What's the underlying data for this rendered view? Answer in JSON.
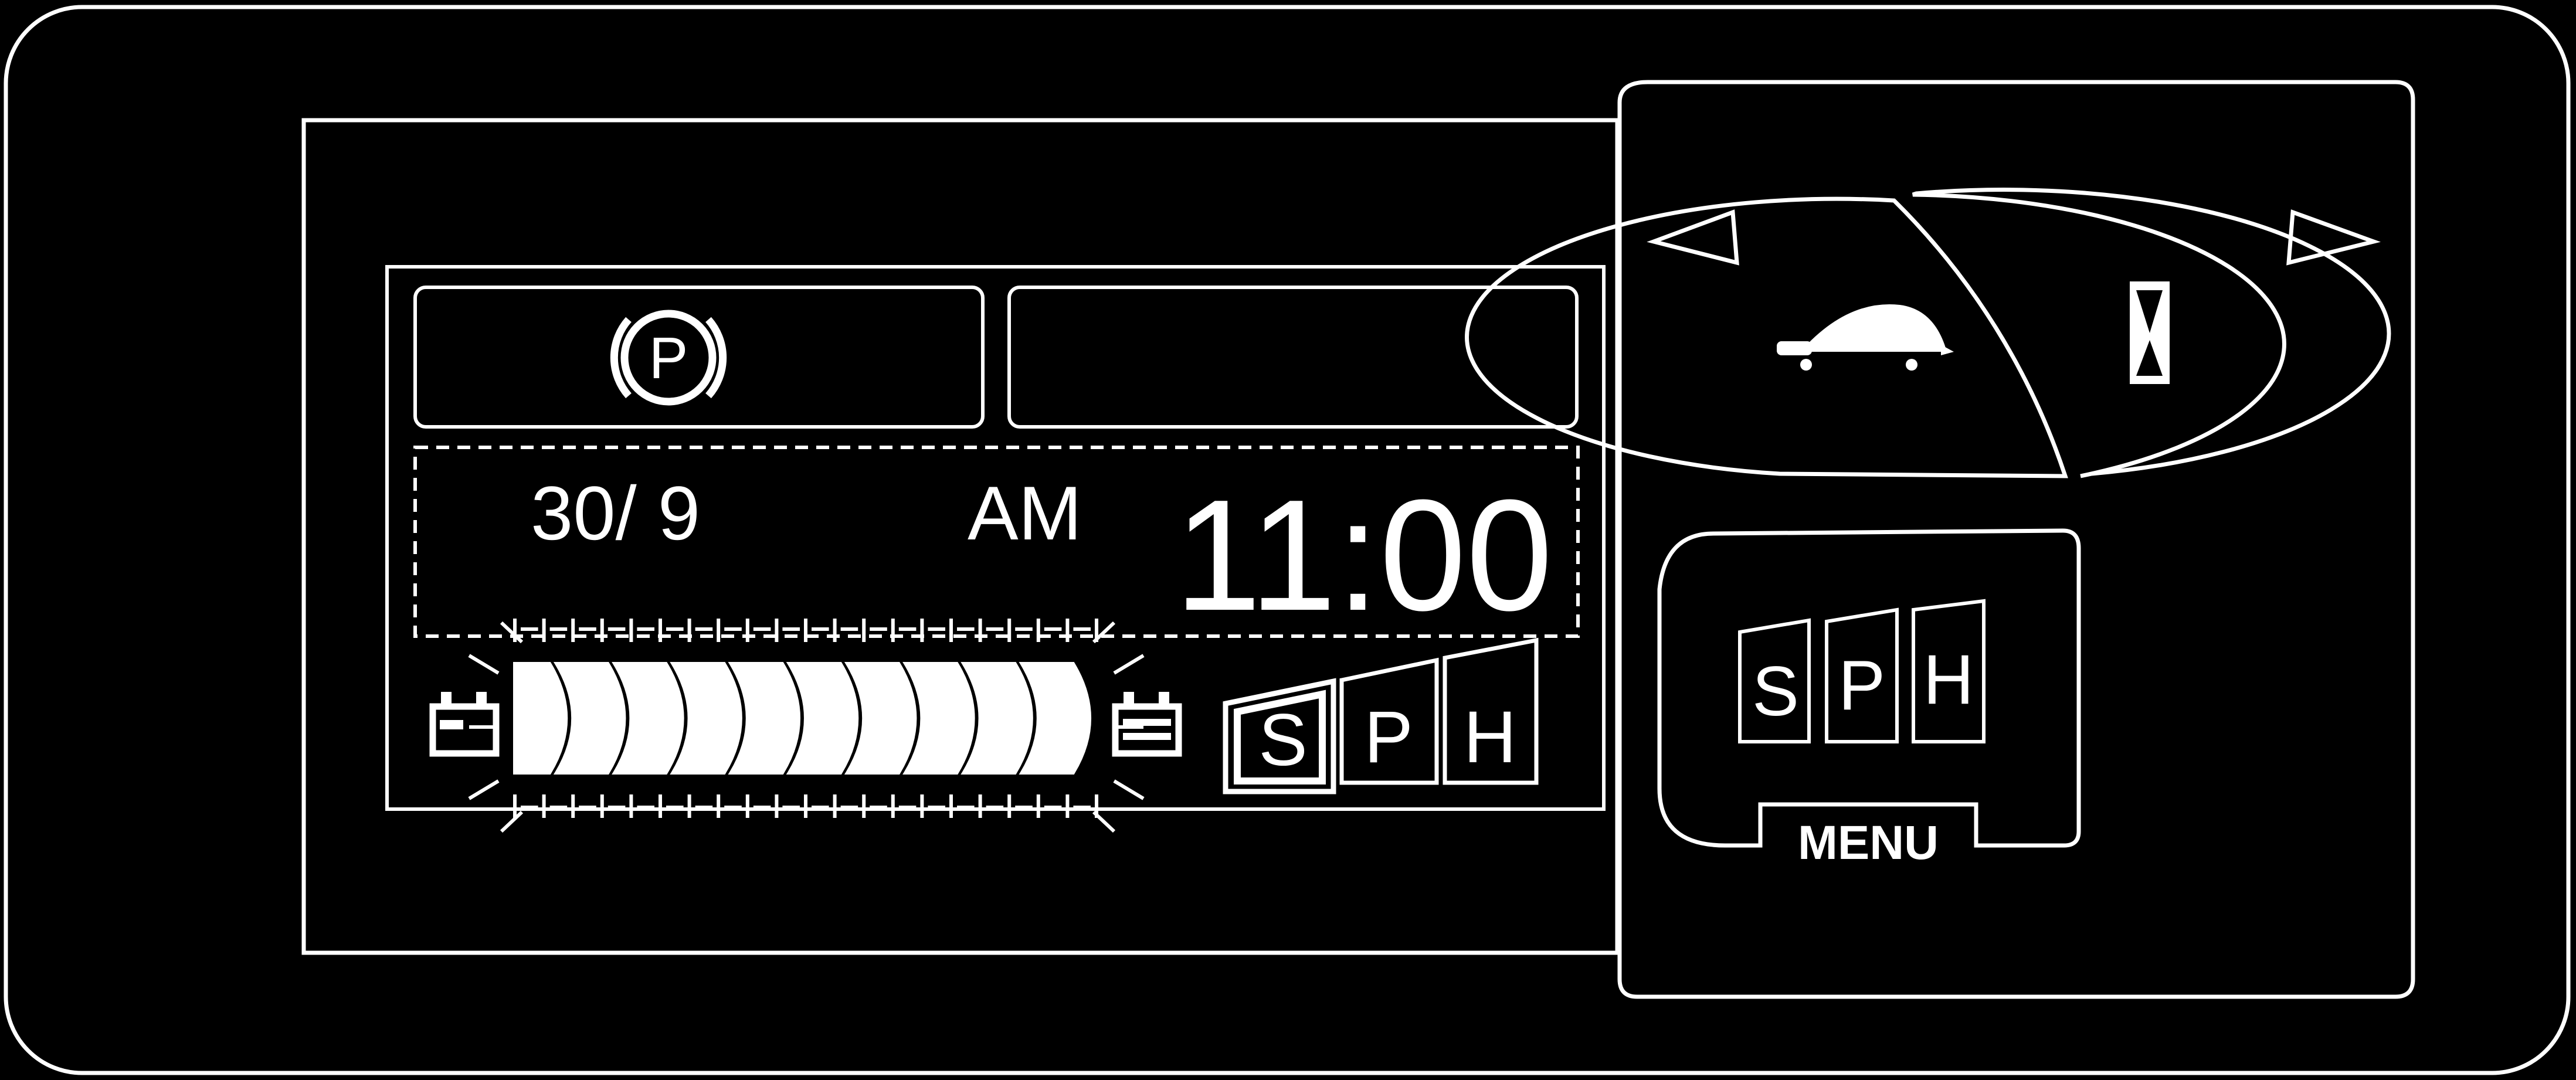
{
  "colors": {
    "background": "#000000",
    "line": "#ffffff"
  },
  "display": {
    "parking_brake_symbol": "P",
    "date": "30/ 9",
    "meridiem": "AM",
    "time": "11:00",
    "charge_gauge": {
      "segments_lit": 10,
      "segments_total": 10
    },
    "battery_icons": [
      "battery-empty-icon",
      "battery-full-icon"
    ],
    "charge_modes": [
      {
        "letter": "S",
        "selected": true
      },
      {
        "letter": "P",
        "selected": false
      },
      {
        "letter": "H",
        "selected": false
      }
    ]
  },
  "controls": {
    "rocker": {
      "left": {
        "icon": "turtle-icon"
      },
      "right": {
        "icon": "hourglass-icon"
      }
    },
    "menu_button": {
      "modes": [
        "S",
        "P",
        "H"
      ],
      "label": "MENU"
    }
  }
}
